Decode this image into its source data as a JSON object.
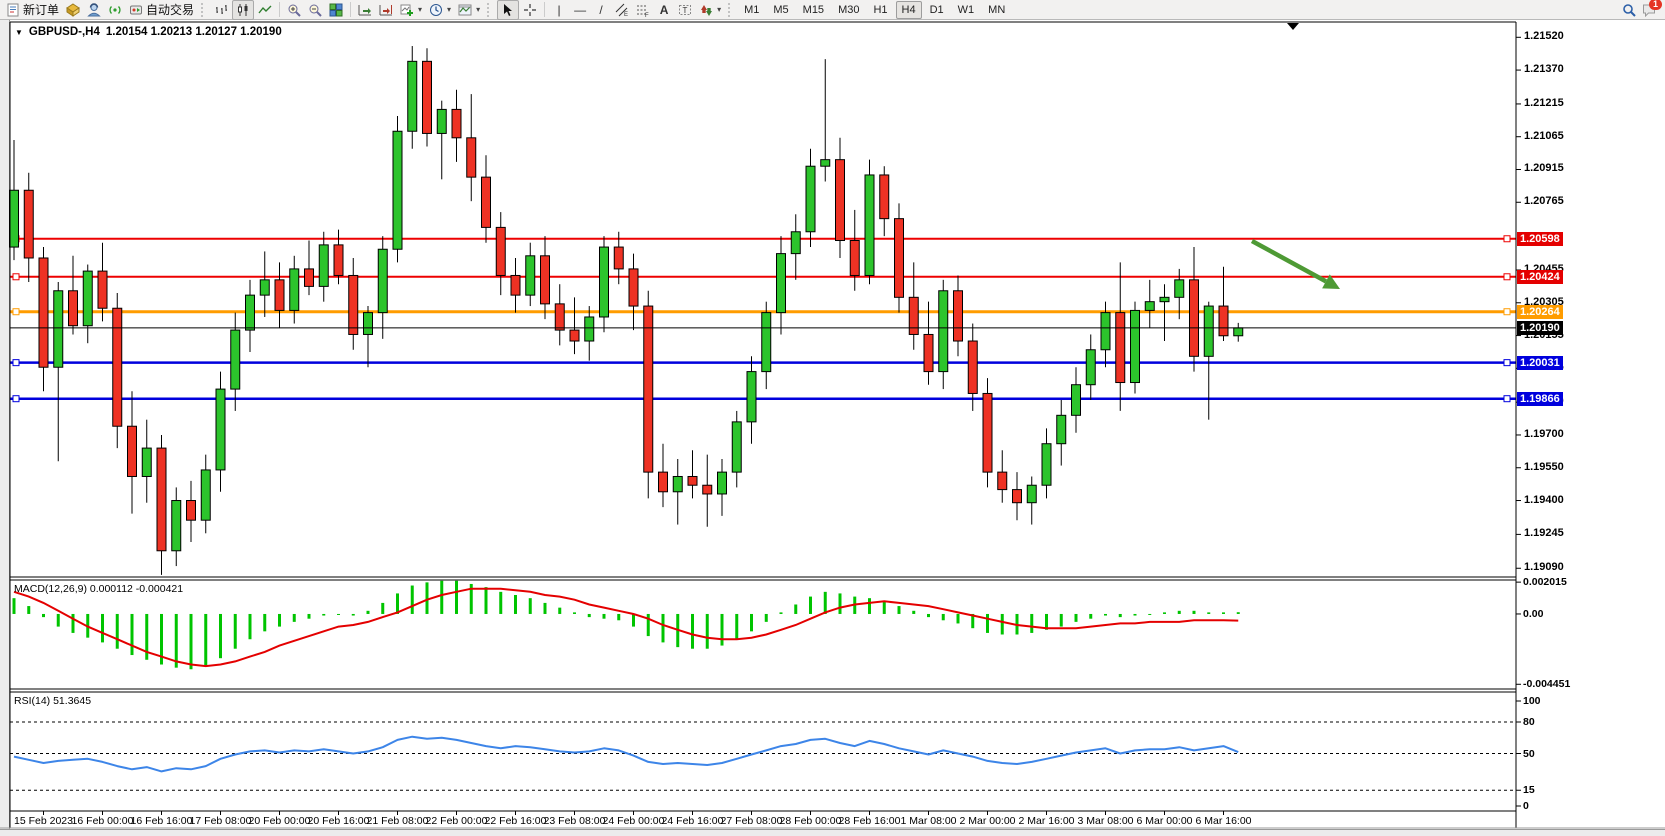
{
  "toolbar": {
    "new_order_label": "新订单",
    "auto_trading_label": "自动交易",
    "timeframes": [
      "M1",
      "M5",
      "M15",
      "M30",
      "H1",
      "H4",
      "D1",
      "W1",
      "MN"
    ],
    "active_timeframe": "H4",
    "notification_badge": "1"
  },
  "chart": {
    "title": "GBPUSD-,H4",
    "ohlc_text": "1.20154 1.20213 1.20127 1.20190"
  },
  "chart_data": [
    {
      "type": "candlestick",
      "symbol": "GBPUSD-",
      "period": "H4",
      "last_open": "1.20154",
      "last_high": "1.20213",
      "last_low": "1.20127",
      "last_close": "1.20190",
      "y_range": [
        1.1905,
        1.2159
      ],
      "y_ticks": [
        "1.21520",
        "1.21370",
        "1.21215",
        "1.21065",
        "1.20915",
        "1.20765",
        "1.20455",
        "1.20305",
        "1.20155",
        "1.20005",
        "1.19850",
        "1.19700",
        "1.19550",
        "1.19400",
        "1.19245",
        "1.19090"
      ],
      "price_tags": [
        {
          "value": "1.20598",
          "color": "#e40000"
        },
        {
          "value": "1.20424",
          "color": "#e40000"
        },
        {
          "value": "1.20264",
          "color": "#ff9c00"
        },
        {
          "value": "1.20190",
          "color": "#000000"
        },
        {
          "value": "1.20031",
          "color": "#0000dd"
        },
        {
          "value": "1.19866",
          "color": "#0000dd"
        }
      ],
      "levels": [
        {
          "price": 1.20598,
          "color": "#ee0000",
          "width": 2
        },
        {
          "price": 1.20424,
          "color": "#ee0000",
          "width": 2
        },
        {
          "price": 1.20264,
          "color": "#ff9c00",
          "width": 3
        },
        {
          "price": 1.20031,
          "color": "#0000dd",
          "width": 2.5
        },
        {
          "price": 1.19866,
          "color": "#0000dd",
          "width": 2.5
        }
      ],
      "current_price_line": {
        "price": 1.2019,
        "color": "#000000",
        "width": 1
      },
      "x_labels": [
        "15 Feb 2023",
        "16 Feb 00:00",
        "16 Feb 16:00",
        "17 Feb 08:00",
        "20 Feb 00:00",
        "20 Feb 16:00",
        "21 Feb 08:00",
        "22 Feb 00:00",
        "22 Feb 16:00",
        "23 Feb 08:00",
        "24 Feb 00:00",
        "24 Feb 16:00",
        "27 Feb 08:00",
        "28 Feb 00:00",
        "28 Feb 16:00",
        "1 Mar 08:00",
        "2 Mar 00:00",
        "2 Mar 16:00",
        "3 Mar 08:00",
        "6 Mar 00:00",
        "6 Mar 16:00"
      ],
      "colors": {
        "bull": "#2cc42c",
        "bear": "#ee3224",
        "wick": "#000000",
        "outline": "#000000"
      },
      "candles": [
        [
          1.2056,
          1.2105,
          1.205,
          1.2082
        ],
        [
          1.2082,
          1.209,
          1.204,
          1.2051
        ],
        [
          1.2051,
          1.2056,
          1.199,
          1.2001
        ],
        [
          1.2001,
          1.204,
          1.1958,
          1.2036
        ],
        [
          1.2036,
          1.2052,
          1.2016,
          1.202
        ],
        [
          1.202,
          1.2048,
          1.2012,
          1.2045
        ],
        [
          1.2045,
          1.2058,
          1.2022,
          1.2028
        ],
        [
          1.2028,
          1.2035,
          1.1964,
          1.1974
        ],
        [
          1.1974,
          1.199,
          1.1934,
          1.1951
        ],
        [
          1.1951,
          1.1977,
          1.1939,
          1.1964
        ],
        [
          1.1964,
          1.197,
          1.1906,
          1.1917
        ],
        [
          1.1917,
          1.1946,
          1.191,
          1.194
        ],
        [
          1.194,
          1.1949,
          1.1921,
          1.1931
        ],
        [
          1.1931,
          1.1961,
          1.1925,
          1.1954
        ],
        [
          1.1954,
          1.1999,
          1.1944,
          1.1991
        ],
        [
          1.1991,
          1.2026,
          1.1981,
          1.2018
        ],
        [
          1.2018,
          1.2041,
          1.2008,
          1.2034
        ],
        [
          1.2034,
          1.2054,
          1.2024,
          1.2041
        ],
        [
          1.2041,
          1.2049,
          1.2019,
          1.2027
        ],
        [
          1.2027,
          1.2052,
          1.2021,
          1.2046
        ],
        [
          1.2046,
          1.2059,
          1.2034,
          1.2038
        ],
        [
          1.2038,
          1.2063,
          1.2031,
          1.2057
        ],
        [
          1.2057,
          1.2064,
          1.2039,
          1.2043
        ],
        [
          1.2043,
          1.2051,
          1.2009,
          1.2016
        ],
        [
          1.2016,
          1.2029,
          1.2001,
          1.2026
        ],
        [
          1.2026,
          1.2061,
          1.2014,
          1.2055
        ],
        [
          1.2055,
          1.2116,
          1.2049,
          1.2109
        ],
        [
          1.2109,
          1.2148,
          1.2101,
          1.2141
        ],
        [
          1.2141,
          1.2147,
          1.2102,
          1.2108
        ],
        [
          1.2108,
          1.2123,
          1.2087,
          1.2119
        ],
        [
          1.2119,
          1.2128,
          1.2095,
          1.2106
        ],
        [
          1.2106,
          1.2126,
          1.2077,
          1.2088
        ],
        [
          1.2088,
          1.2098,
          1.2058,
          1.2065
        ],
        [
          1.2065,
          1.2072,
          1.2034,
          1.2043
        ],
        [
          1.2043,
          1.2051,
          1.2026,
          1.2034
        ],
        [
          1.2034,
          1.2058,
          1.2029,
          1.2052
        ],
        [
          1.2052,
          1.2061,
          1.2023,
          1.203
        ],
        [
          1.203,
          1.2039,
          1.2011,
          1.2018
        ],
        [
          1.2018,
          1.2033,
          1.2007,
          1.2013
        ],
        [
          1.2013,
          1.2029,
          1.2004,
          1.2024
        ],
        [
          1.2024,
          1.2061,
          1.2017,
          1.2056
        ],
        [
          1.2056,
          1.2063,
          1.2039,
          1.2046
        ],
        [
          1.2046,
          1.2053,
          1.2018,
          1.2029
        ],
        [
          1.2029,
          1.2036,
          1.1941,
          1.1953
        ],
        [
          1.1953,
          1.1966,
          1.1937,
          1.1944
        ],
        [
          1.1944,
          1.1959,
          1.1929,
          1.1951
        ],
        [
          1.1951,
          1.1963,
          1.1941,
          1.1947
        ],
        [
          1.1947,
          1.1961,
          1.1928,
          1.1943
        ],
        [
          1.1943,
          1.1959,
          1.1933,
          1.1953
        ],
        [
          1.1953,
          1.1981,
          1.1946,
          1.1976
        ],
        [
          1.1976,
          1.2006,
          1.1966,
          1.1999
        ],
        [
          1.1999,
          1.2031,
          1.1991,
          1.2026
        ],
        [
          1.2026,
          1.2061,
          1.2016,
          1.2053
        ],
        [
          1.2053,
          1.2071,
          1.2041,
          1.2063
        ],
        [
          1.2063,
          1.2101,
          1.2056,
          1.2093
        ],
        [
          1.2093,
          1.2142,
          1.2086,
          1.2096
        ],
        [
          1.2096,
          1.2106,
          1.2051,
          1.2059
        ],
        [
          1.2059,
          1.2073,
          1.2036,
          1.2043
        ],
        [
          1.2043,
          1.2096,
          1.2039,
          1.2089
        ],
        [
          1.2089,
          1.2093,
          1.2061,
          1.2069
        ],
        [
          1.2069,
          1.2076,
          1.2026,
          1.2033
        ],
        [
          1.2033,
          1.2049,
          1.2009,
          1.2016
        ],
        [
          1.2016,
          1.2031,
          1.1993,
          1.1999
        ],
        [
          1.1999,
          1.2041,
          1.1991,
          1.2036
        ],
        [
          1.2036,
          1.2043,
          1.2006,
          1.2013
        ],
        [
          1.2013,
          1.2021,
          1.1981,
          1.1989
        ],
        [
          1.1989,
          1.1996,
          1.1946,
          1.1953
        ],
        [
          1.1953,
          1.1963,
          1.1939,
          1.1945
        ],
        [
          1.1945,
          1.1953,
          1.1931,
          1.1939
        ],
        [
          1.1939,
          1.1951,
          1.1929,
          1.1947
        ],
        [
          1.1947,
          1.1973,
          1.1941,
          1.1966
        ],
        [
          1.1966,
          1.1986,
          1.1956,
          1.1979
        ],
        [
          1.1979,
          1.2001,
          1.1971,
          1.1993
        ],
        [
          1.1993,
          1.2016,
          1.1986,
          1.2009
        ],
        [
          1.2009,
          1.2031,
          1.2001,
          1.2026
        ],
        [
          1.2026,
          1.2049,
          1.1981,
          1.1994
        ],
        [
          1.1994,
          1.2031,
          1.1989,
          1.2027
        ],
        [
          1.2027,
          1.2041,
          1.2019,
          1.2031
        ],
        [
          1.2031,
          1.2039,
          1.2013,
          1.2033
        ],
        [
          1.2033,
          1.2046,
          1.2023,
          1.2041
        ],
        [
          1.2041,
          1.2056,
          1.1999,
          1.2006
        ],
        [
          1.2006,
          1.2031,
          1.1977,
          1.2029
        ],
        [
          1.2029,
          1.2047,
          1.2013,
          1.20154
        ],
        [
          1.20154,
          1.20213,
          1.20127,
          1.2019
        ]
      ],
      "arrow_annotation": {
        "from": [
          1252,
          241
        ],
        "to": [
          1340,
          289
        ],
        "color": "#4e9a35",
        "width": 4.5
      },
      "shift_marker": {
        "x": 1293,
        "y": 23
      }
    },
    {
      "type": "bar+line",
      "name": "MACD",
      "label_text": "MACD(12,26,9) 0.000112 -0.000421",
      "params": "12,26,9",
      "value_main": "0.000112",
      "value_signal": "-0.000421",
      "axis_labels": [
        "0.002015",
        "0.00",
        "-0.004451"
      ],
      "range": [
        -0.00475,
        0.00215
      ],
      "colors": {
        "histogram": "#00c400",
        "signal": "#e40000"
      },
      "histogram": [
        0.001,
        0.0005,
        -0.0002,
        -0.0008,
        -0.0012,
        -0.0015,
        -0.0018,
        -0.0022,
        -0.0026,
        -0.0029,
        -0.0032,
        -0.0034,
        -0.0035,
        -0.0033,
        -0.0028,
        -0.0022,
        -0.0016,
        -0.0011,
        -0.0008,
        -0.0005,
        -0.0003,
        -0.0001,
        0.0,
        -0.0001,
        0.0002,
        0.0007,
        0.0013,
        0.0018,
        0.002,
        0.0021,
        0.0021,
        0.0019,
        0.0017,
        0.0014,
        0.0012,
        0.001,
        0.0007,
        0.0004,
        0.0001,
        -0.0002,
        -0.0003,
        -0.0004,
        -0.0008,
        -0.0014,
        -0.0018,
        -0.0021,
        -0.0022,
        -0.0022,
        -0.002,
        -0.0016,
        -0.0011,
        -0.0005,
        0.0001,
        0.0006,
        0.0011,
        0.0014,
        0.0013,
        0.0011,
        0.001,
        0.0008,
        0.0005,
        0.0002,
        -0.0002,
        -0.0004,
        -0.0006,
        -0.0009,
        -0.0012,
        -0.0013,
        -0.0013,
        -0.0012,
        -0.001,
        -0.0008,
        -0.0005,
        -0.0003,
        -0.0001,
        -0.0002,
        -0.0001,
        0.0,
        0.0001,
        0.0002,
        0.0002,
        0.0001,
        0.0001,
        0.000112
      ],
      "signal": [
        0.0014,
        0.0011,
        0.0007,
        0.0002,
        -0.0003,
        -0.0008,
        -0.0012,
        -0.0016,
        -0.002,
        -0.0024,
        -0.0027,
        -0.003,
        -0.0032,
        -0.0033,
        -0.0032,
        -0.003,
        -0.0027,
        -0.0024,
        -0.002,
        -0.0017,
        -0.0014,
        -0.0011,
        -0.0008,
        -0.0007,
        -0.0005,
        -0.0002,
        0.0001,
        0.0005,
        0.0009,
        0.0012,
        0.0014,
        0.0016,
        0.0016,
        0.0016,
        0.0015,
        0.0014,
        0.0012,
        0.0011,
        0.0009,
        0.0006,
        0.0004,
        0.0002,
        0.0,
        -0.0003,
        -0.0007,
        -0.001,
        -0.0013,
        -0.0015,
        -0.0016,
        -0.0016,
        -0.0015,
        -0.0013,
        -0.001,
        -0.0007,
        -0.0003,
        0.0001,
        0.0004,
        0.0006,
        0.0007,
        0.0008,
        0.0007,
        0.0006,
        0.0005,
        0.0003,
        0.0001,
        -0.0001,
        -0.0003,
        -0.0005,
        -0.0007,
        -0.0008,
        -0.0009,
        -0.0009,
        -0.0009,
        -0.0008,
        -0.0007,
        -0.0006,
        -0.0006,
        -0.0005,
        -0.0005,
        -0.0005,
        -0.0004,
        -0.0004,
        -0.0004,
        -0.000421
      ]
    },
    {
      "type": "line",
      "name": "RSI",
      "label_text": "RSI(14) 51.3645",
      "params": "14",
      "value": "51.3645",
      "axis_labels": [
        "100",
        "80",
        "50",
        "15",
        "0"
      ],
      "levels": [
        80,
        50,
        15
      ],
      "range": [
        0,
        100
      ],
      "colors": {
        "line": "#3d85e8",
        "level": "#000000"
      },
      "series": [
        47,
        44,
        41,
        43,
        44,
        45,
        42,
        38,
        35,
        37,
        33,
        36,
        35,
        38,
        45,
        49,
        52,
        53,
        51,
        53,
        52,
        54,
        52,
        50,
        52,
        56,
        63,
        66,
        64,
        65,
        63,
        60,
        57,
        55,
        57,
        56,
        54,
        52,
        51,
        52,
        55,
        53,
        48,
        42,
        40,
        41,
        40,
        39,
        41,
        45,
        49,
        53,
        57,
        59,
        63,
        64,
        60,
        57,
        62,
        59,
        55,
        52,
        49,
        53,
        50,
        47,
        43,
        41,
        40,
        42,
        45,
        48,
        51,
        53,
        55,
        50,
        53,
        54,
        54,
        56,
        53,
        55,
        57,
        51.36
      ]
    }
  ]
}
